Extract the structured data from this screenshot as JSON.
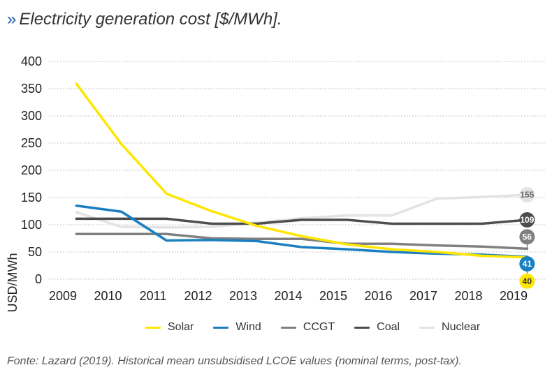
{
  "title": {
    "mark": "»",
    "text": "Electricity generation cost [$/MWh]."
  },
  "footnote": "Fonte: Lazard (2019). Historical mean unsubsidised LCOE values (nominal terms, post-tax).",
  "chart_data": {
    "type": "line",
    "ylabel": "USD/MWh",
    "ylim": [
      0,
      400
    ],
    "yticks": [
      0,
      50,
      100,
      150,
      200,
      250,
      300,
      350,
      400
    ],
    "xticks": [
      2009,
      2010,
      2011,
      2012,
      2013,
      2014,
      2015,
      2016,
      2017,
      2018,
      2019
    ],
    "grid": "horizontal dotted",
    "legend_position": "bottom",
    "series": [
      {
        "name": "Solar",
        "color": "#ffe600",
        "x": [
          2009.3,
          2010.3,
          2011.3,
          2012.3,
          2013.3,
          2014.3,
          2015.3,
          2016.3,
          2017.3,
          2018.3,
          2019.3
        ],
        "y": [
          359,
          248,
          157,
          125,
          98,
          79,
          64,
          55,
          50,
          43,
          40
        ],
        "end_label": "40"
      },
      {
        "name": "Wind",
        "color": "#1a7fc1",
        "x": [
          2009.3,
          2010.3,
          2011.3,
          2012.3,
          2013.3,
          2014.3,
          2015.3,
          2016.3,
          2017.3,
          2018.3,
          2019.3
        ],
        "y": [
          135,
          124,
          71,
          72,
          70,
          59,
          55,
          50,
          47,
          45,
          41
        ],
        "end_label": "41"
      },
      {
        "name": "CCGT",
        "color": "#808080",
        "x": [
          2009.3,
          2010.3,
          2011.3,
          2012.3,
          2013.3,
          2014.3,
          2015.3,
          2016.3,
          2017.3,
          2018.3,
          2019.3
        ],
        "y": [
          83,
          83,
          83,
          75,
          74,
          74,
          65,
          65,
          62,
          60,
          56
        ],
        "end_label": "56"
      },
      {
        "name": "Coal",
        "color": "#4d4d4d",
        "x": [
          2009.3,
          2010.3,
          2011.3,
          2012.3,
          2013.3,
          2014.3,
          2015.3,
          2016.3,
          2017.3,
          2018.3,
          2019.3
        ],
        "y": [
          111,
          111,
          111,
          102,
          102,
          109,
          109,
          102,
          102,
          102,
          109
        ],
        "end_label": "109"
      },
      {
        "name": "Nuclear",
        "color": "#e3e3e3",
        "x": [
          2009.3,
          2010.3,
          2011.3,
          2012.3,
          2013.3,
          2014.3,
          2015.3,
          2016.3,
          2017.3,
          2018.3,
          2019.3
        ],
        "y": [
          123,
          96,
          95,
          96,
          104,
          112,
          117,
          117,
          148,
          151,
          155
        ],
        "end_label": "155"
      }
    ]
  }
}
